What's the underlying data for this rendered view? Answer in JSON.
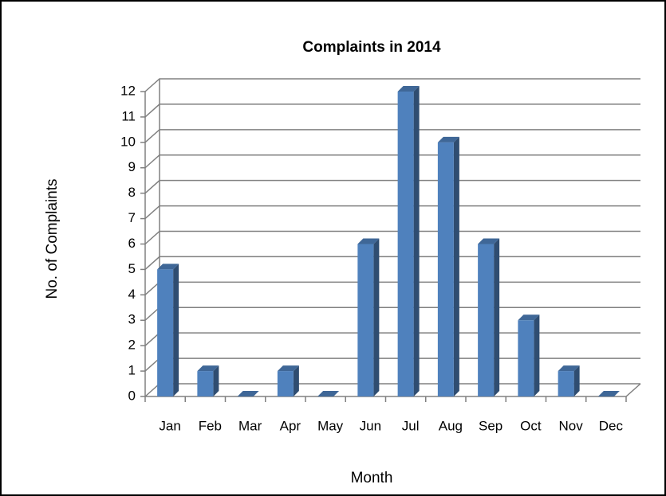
{
  "chart_data": {
    "type": "bar",
    "title": "Complaints in 2014",
    "x_label": "Month",
    "y_label": "No. of Complaints",
    "categories": [
      "Jan",
      "Feb",
      "Mar",
      "Apr",
      "May",
      "Jun",
      "Jul",
      "Aug",
      "Sep",
      "Oct",
      "Nov",
      "Dec"
    ],
    "values": [
      5,
      1,
      0,
      1,
      0,
      6,
      12,
      10,
      6,
      3,
      1,
      0
    ],
    "color": "#4f81bd",
    "ylim": [
      0,
      12
    ],
    "yticks": [
      0,
      1,
      2,
      3,
      4,
      5,
      6,
      7,
      8,
      9,
      10,
      11,
      12
    ],
    "grid": true
  }
}
